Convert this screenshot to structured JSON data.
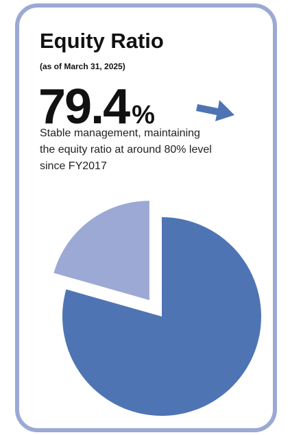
{
  "title": "Equity Ratio",
  "subtitle": "(as of March 31, 2025)",
  "unit": "%",
  "description": [
    "Stable management, maintaining",
    "the equity ratio at around 80% level",
    "since FY2017"
  ],
  "chart_data": {
    "type": "pie",
    "categories": [
      null,
      null
    ],
    "values": [
      79.4,
      20.6
    ],
    "colors": [
      "#4f74b4",
      "#9ba9d4"
    ],
    "explode": [
      false,
      true
    ]
  }
}
